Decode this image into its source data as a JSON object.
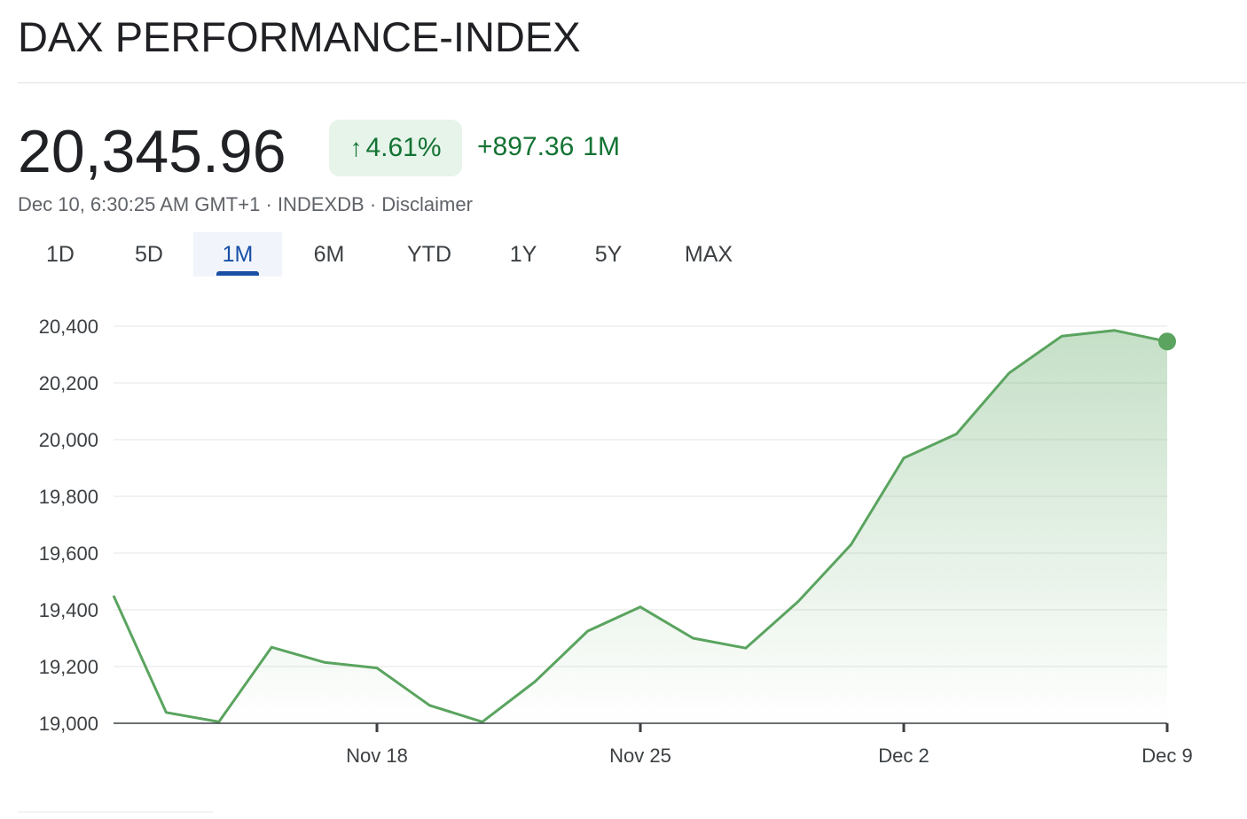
{
  "header": {
    "title": "DAX PERFORMANCE-INDEX"
  },
  "quote": {
    "price": "20,345.96",
    "change_percent": "4.61%",
    "change_abs": "+897.36",
    "change_period": "1M",
    "timestamp": "Dec 10, 6:30:25 AM GMT+1",
    "separator": "·",
    "source": "INDEXDB",
    "disclaimer": "Disclaimer"
  },
  "tabs": [
    {
      "label": "1D",
      "active": false
    },
    {
      "label": "5D",
      "active": false
    },
    {
      "label": "1M",
      "active": true
    },
    {
      "label": "6M",
      "active": false
    },
    {
      "label": "YTD",
      "active": false
    },
    {
      "label": "1Y",
      "active": false
    },
    {
      "label": "5Y",
      "active": false
    },
    {
      "label": "MAX",
      "active": false
    }
  ],
  "colors": {
    "line": "#5aa45f",
    "fill": "#5aa45f",
    "positive": "#137333",
    "grid": "#eeeeee",
    "axis": "#3c4043"
  },
  "chart_data": {
    "type": "area",
    "title": "",
    "xlabel": "",
    "ylabel": "",
    "ylim": [
      19000,
      20400
    ],
    "y_ticks": [
      19000,
      19200,
      19400,
      19600,
      19800,
      20000,
      20200,
      20400
    ],
    "y_tick_labels": [
      "19,000",
      "19,200",
      "19,400",
      "19,600",
      "19,800",
      "20,000",
      "20,200",
      "20,400"
    ],
    "x_tick_labels": [
      "Nov 18",
      "Nov 25",
      "Dec 2",
      "Dec 9"
    ],
    "x_tick_dates": [
      "2024-11-18",
      "2024-11-25",
      "2024-12-02",
      "2024-12-09"
    ],
    "grid": true,
    "series": [
      {
        "x": [
          "2024-11-11",
          "2024-11-12",
          "2024-11-13",
          "2024-11-14",
          "2024-11-15",
          "2024-11-18",
          "2024-11-19",
          "2024-11-20",
          "2024-11-21",
          "2024-11-22",
          "2024-11-25",
          "2024-11-26",
          "2024-11-27",
          "2024-11-28",
          "2024-11-29",
          "2024-12-02",
          "2024-12-03",
          "2024-12-04",
          "2024-12-05",
          "2024-12-06",
          "2024-12-09"
        ],
        "values": [
          19450,
          19038,
          19005,
          19268,
          19215,
          19195,
          19063,
          19005,
          19147,
          19325,
          19410,
          19300,
          19265,
          19430,
          19630,
          19935,
          20020,
          20235,
          20365,
          20385,
          20346
        ]
      }
    ]
  }
}
